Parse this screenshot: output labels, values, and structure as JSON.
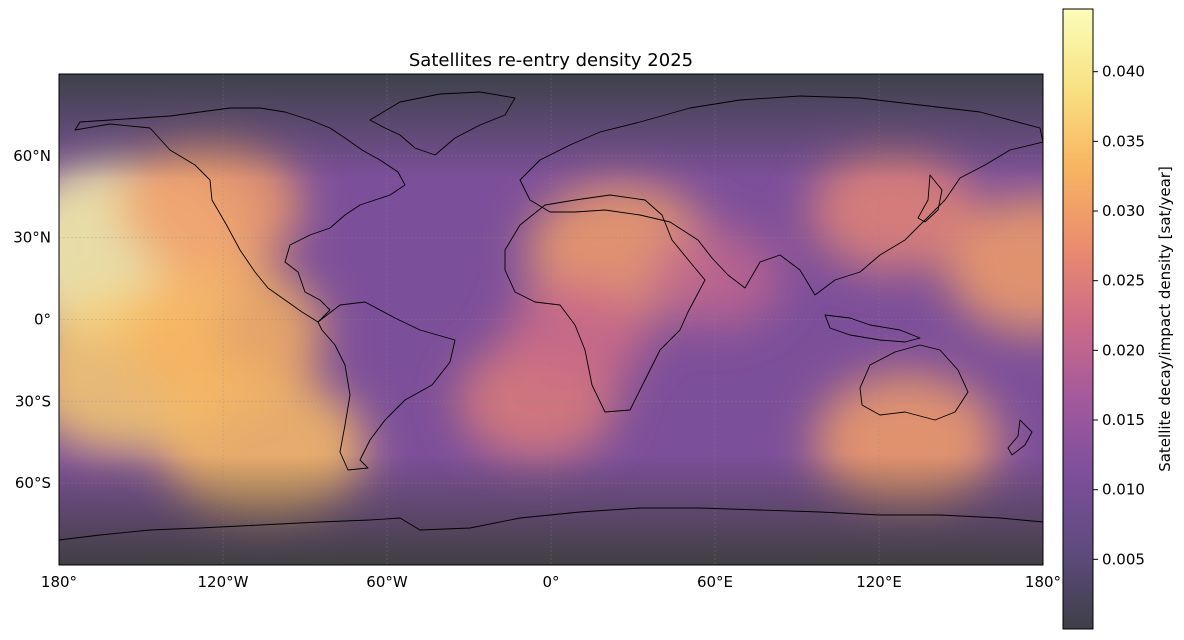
{
  "title": "Satellites re-entry density 2025",
  "map": {
    "projection": "PlateCarree",
    "lon_range": [
      -180,
      180
    ],
    "lat_range": [
      -90,
      90
    ],
    "ocean_base_color": "#7c4f9a",
    "polar_color": "#3e4346",
    "coastline_color": "#000000",
    "gridlines": true,
    "lon_ticks": [
      {
        "value": -180,
        "label": "180°"
      },
      {
        "value": -120,
        "label": "120°W"
      },
      {
        "value": -60,
        "label": "60°W"
      },
      {
        "value": 0,
        "label": "0°"
      },
      {
        "value": 60,
        "label": "60°E"
      },
      {
        "value": 120,
        "label": "120°E"
      },
      {
        "value": 180,
        "label": "180°"
      }
    ],
    "lat_ticks": [
      {
        "value": 60,
        "label": "60°N"
      },
      {
        "value": 30,
        "label": "30°N"
      },
      {
        "value": 0,
        "label": "0°"
      },
      {
        "value": -30,
        "label": "30°S"
      },
      {
        "value": -60,
        "label": "60°S"
      }
    ],
    "density_hotspots": [
      {
        "lon": -155,
        "lat": 25,
        "value": 0.043
      },
      {
        "lon": -155,
        "lat": -20,
        "value": 0.036
      },
      {
        "lon": -120,
        "lat": -5,
        "value": 0.033
      },
      {
        "lon": -125,
        "lat": 42,
        "value": 0.03
      },
      {
        "lon": -105,
        "lat": -48,
        "value": 0.034
      },
      {
        "lon": 25,
        "lat": 25,
        "value": 0.03
      },
      {
        "lon": -5,
        "lat": -30,
        "value": 0.025
      },
      {
        "lon": 130,
        "lat": -45,
        "value": 0.03
      },
      {
        "lon": 178,
        "lat": 20,
        "value": 0.03
      },
      {
        "lon": 125,
        "lat": 40,
        "value": 0.026
      },
      {
        "lon": 10,
        "lat": -5,
        "value": 0.022
      },
      {
        "lon": 60,
        "lat": 15,
        "value": 0.02
      }
    ]
  },
  "colorbar": {
    "label": "Satellite decay/impact density [sat/year]",
    "range": [
      0.0,
      0.0445
    ],
    "ticks": [
      "0.005",
      "0.010",
      "0.015",
      "0.020",
      "0.025",
      "0.030",
      "0.035",
      "0.040"
    ],
    "colors": [
      "#3e3f47",
      "#5e4b7e",
      "#7d4f9c",
      "#a45a9c",
      "#cf6c86",
      "#ec8f6d",
      "#f8b661",
      "#f8e283",
      "#fbfdb9"
    ]
  }
}
